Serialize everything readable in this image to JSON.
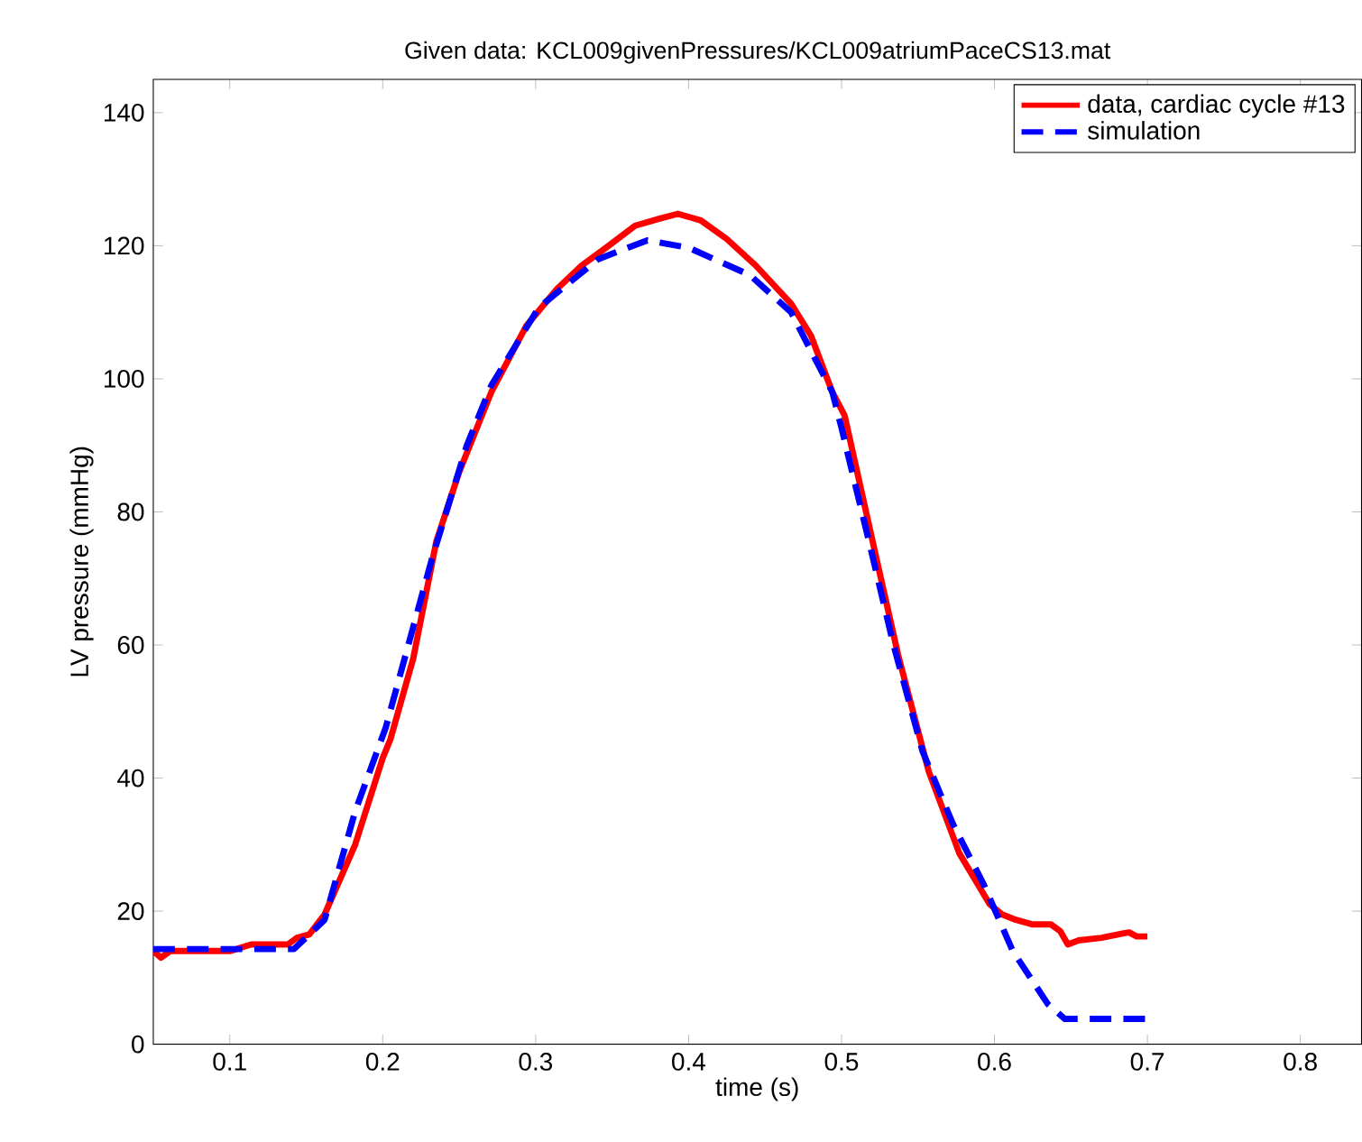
{
  "chart_data": {
    "type": "line",
    "title": "Given data: KCL009givenPressures/KCL009atriumPaceCS13.mat",
    "xlabel": "time (s)",
    "ylabel": "LV pressure (mmHg)",
    "xlim": [
      0.05,
      0.84
    ],
    "ylim": [
      0,
      145
    ],
    "xticks": [
      0.1,
      0.2,
      0.3,
      0.4,
      0.5,
      0.6,
      0.7,
      0.8
    ],
    "yticks": [
      0,
      20,
      40,
      60,
      80,
      100,
      120,
      140
    ],
    "grid": false,
    "legend": "top right",
    "marker": "none",
    "series": [
      {
        "name": "data, cardiac cycle #13",
        "color": "#ff0000",
        "line_style": "solid",
        "x": [
          0.05,
          0.055,
          0.061,
          0.08,
          0.1,
          0.114,
          0.138,
          0.144,
          0.152,
          0.162,
          0.182,
          0.2,
          0.205,
          0.22,
          0.235,
          0.25,
          0.271,
          0.294,
          0.314,
          0.33,
          0.346,
          0.365,
          0.38,
          0.393,
          0.408,
          0.425,
          0.444,
          0.467,
          0.48,
          0.494,
          0.502,
          0.523,
          0.537,
          0.557,
          0.577,
          0.597,
          0.605,
          0.614,
          0.625,
          0.637,
          0.643,
          0.648,
          0.655,
          0.67,
          0.683,
          0.688,
          0.693,
          0.7
        ],
        "values": [
          14,
          13,
          14,
          14,
          14,
          15,
          15,
          16,
          16.5,
          19.5,
          30,
          43,
          45.8,
          58,
          75.5,
          86,
          98,
          108,
          113.5,
          117,
          119.7,
          123,
          124,
          124.8,
          123.8,
          121,
          117,
          111.3,
          106.5,
          98,
          94.5,
          72.8,
          58.5,
          41,
          28.7,
          21,
          19.5,
          18.7,
          18,
          18,
          17,
          15,
          15.6,
          16,
          16.6,
          16.8,
          16.2,
          16.2
        ]
      },
      {
        "name": "simulation",
        "color": "#0000ff",
        "line_style": "dashed",
        "x": [
          0.05,
          0.1,
          0.142,
          0.162,
          0.182,
          0.202,
          0.232,
          0.255,
          0.271,
          0.302,
          0.341,
          0.373,
          0.4,
          0.44,
          0.467,
          0.494,
          0.5,
          0.518,
          0.534,
          0.553,
          0.573,
          0.593,
          0.612,
          0.635,
          0.646,
          0.7
        ],
        "values": [
          14.3,
          14.3,
          14.3,
          18.7,
          35,
          47.6,
          72.8,
          90,
          99,
          110.7,
          118,
          120.8,
          119.7,
          115.6,
          110,
          98,
          92.6,
          75.5,
          60,
          44,
          33,
          24,
          14,
          6,
          3.8,
          3.8
        ]
      }
    ]
  }
}
